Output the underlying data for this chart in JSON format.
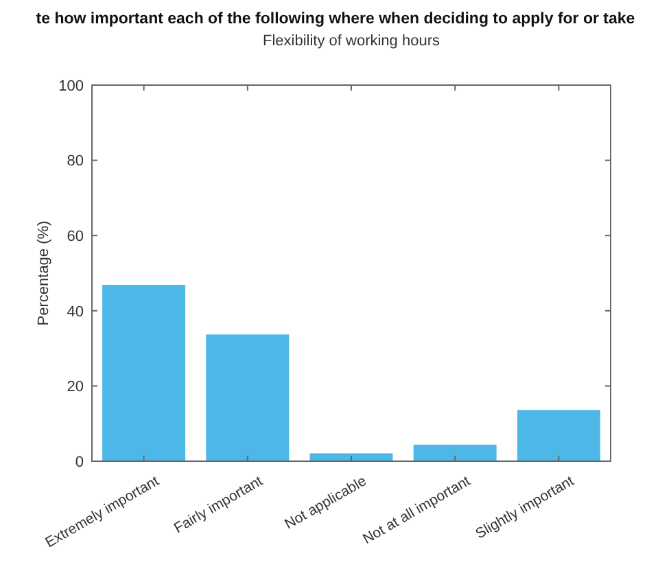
{
  "chart_data": {
    "type": "bar",
    "title": "te how important each of the following where when deciding to apply for or take",
    "subtitle": "Flexibility of working hours",
    "ylabel": "Percentage (%)",
    "categories": [
      "Extremely important",
      "Fairly important",
      "Not applicable",
      "Not at all important",
      "Slightly important"
    ],
    "values": [
      46.9,
      33.7,
      2.1,
      4.4,
      13.6
    ],
    "color": "#4db8e8",
    "ylim": [
      0,
      100
    ],
    "yticks": [
      0,
      20,
      40,
      60,
      80,
      100
    ],
    "grid": false
  }
}
